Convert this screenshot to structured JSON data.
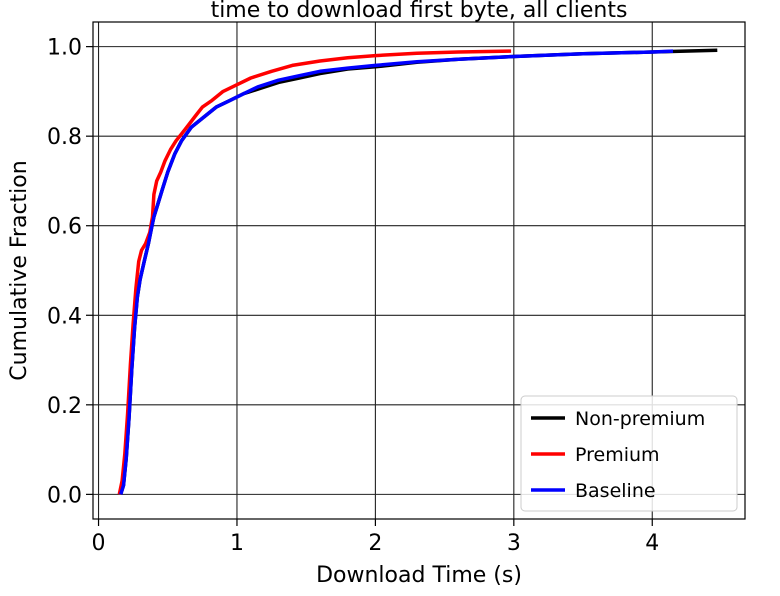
{
  "chart_data": {
    "type": "line",
    "title": "time to download first byte, all clients",
    "xlabel": "Download Time (s)",
    "ylabel": "Cumulative Fraction",
    "xlim": [
      -0.04,
      4.67
    ],
    "ylim": [
      -0.055,
      1.055
    ],
    "xticks": [
      0,
      1,
      2,
      3,
      4
    ],
    "xtick_labels": [
      "0",
      "1",
      "2",
      "3",
      "4"
    ],
    "yticks": [
      0.0,
      0.2,
      0.4,
      0.6,
      0.8,
      1.0
    ],
    "ytick_labels": [
      "0.0",
      "0.2",
      "0.4",
      "0.6",
      "0.8",
      "1.0"
    ],
    "grid": true,
    "legend": {
      "position": "lower-right"
    },
    "series": [
      {
        "name": "Non-premium",
        "color": "#000000",
        "x": [
          0.16,
          0.18,
          0.2,
          0.22,
          0.24,
          0.26,
          0.28,
          0.3,
          0.33,
          0.36,
          0.38,
          0.4,
          0.43,
          0.46,
          0.5,
          0.55,
          0.6,
          0.67,
          0.75,
          0.85,
          0.95,
          1.05,
          1.15,
          1.3,
          1.45,
          1.6,
          1.8,
          2.0,
          2.3,
          2.6,
          3.0,
          3.5,
          4.0,
          4.47
        ],
        "y": [
          0.0,
          0.02,
          0.08,
          0.17,
          0.28,
          0.37,
          0.44,
          0.48,
          0.52,
          0.56,
          0.59,
          0.62,
          0.65,
          0.68,
          0.72,
          0.76,
          0.79,
          0.82,
          0.84,
          0.865,
          0.88,
          0.895,
          0.905,
          0.92,
          0.93,
          0.94,
          0.95,
          0.955,
          0.965,
          0.972,
          0.978,
          0.984,
          0.988,
          0.992
        ]
      },
      {
        "name": "Premium",
        "color": "#ff0000",
        "x": [
          0.15,
          0.17,
          0.19,
          0.21,
          0.23,
          0.25,
          0.27,
          0.29,
          0.31,
          0.34,
          0.37,
          0.39,
          0.4,
          0.42,
          0.45,
          0.48,
          0.52,
          0.56,
          0.6,
          0.65,
          0.7,
          0.75,
          0.82,
          0.9,
          1.0,
          1.1,
          1.25,
          1.4,
          1.6,
          1.8,
          2.0,
          2.3,
          2.6,
          2.98
        ],
        "y": [
          0.0,
          0.03,
          0.09,
          0.18,
          0.29,
          0.38,
          0.46,
          0.52,
          0.545,
          0.56,
          0.585,
          0.62,
          0.67,
          0.7,
          0.72,
          0.745,
          0.77,
          0.79,
          0.805,
          0.825,
          0.845,
          0.865,
          0.88,
          0.9,
          0.915,
          0.93,
          0.945,
          0.958,
          0.968,
          0.975,
          0.98,
          0.985,
          0.988,
          0.99
        ]
      },
      {
        "name": "Baseline",
        "color": "#0000ff",
        "x": [
          0.16,
          0.18,
          0.2,
          0.22,
          0.24,
          0.26,
          0.28,
          0.3,
          0.33,
          0.36,
          0.38,
          0.4,
          0.43,
          0.46,
          0.5,
          0.55,
          0.6,
          0.67,
          0.75,
          0.85,
          0.95,
          1.05,
          1.15,
          1.3,
          1.45,
          1.6,
          1.8,
          2.0,
          2.3,
          2.6,
          3.0,
          3.5,
          4.0,
          4.15
        ],
        "y": [
          0.0,
          0.02,
          0.08,
          0.17,
          0.28,
          0.37,
          0.44,
          0.48,
          0.52,
          0.56,
          0.59,
          0.62,
          0.65,
          0.68,
          0.72,
          0.76,
          0.79,
          0.82,
          0.84,
          0.865,
          0.88,
          0.895,
          0.91,
          0.925,
          0.935,
          0.945,
          0.952,
          0.958,
          0.966,
          0.972,
          0.978,
          0.984,
          0.988,
          0.99
        ]
      }
    ]
  }
}
